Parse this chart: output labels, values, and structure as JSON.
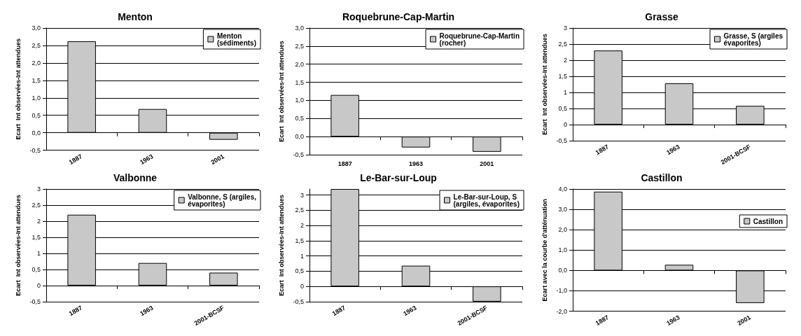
{
  "chart_data": [
    {
      "type": "bar",
      "title": "Menton",
      "ylabel": "Ecart  Int observées-Int attendues",
      "categories": [
        "1887",
        "1963",
        "2001"
      ],
      "series": [
        {
          "name": "Menton\n(sédiments)",
          "color": "#c8c8c8",
          "values": [
            2.62,
            0.68,
            -0.2
          ]
        }
      ],
      "ylim": [
        -0.5,
        3
      ],
      "yticks": [
        {
          "value": -0.5,
          "label": "-0,5"
        },
        {
          "value": 0,
          "label": "0,0"
        },
        {
          "value": 0.5,
          "label": "0,5"
        },
        {
          "value": 1,
          "label": "1,0"
        },
        {
          "value": 1.5,
          "label": "1,5"
        },
        {
          "value": 2,
          "label": "2,0"
        },
        {
          "value": 2.5,
          "label": "2,5"
        },
        {
          "value": 3,
          "label": "3,0"
        }
      ],
      "grid": "y",
      "legend": "top right"
    },
    {
      "type": "bar",
      "title": "Roquebrune-Cap-Martin",
      "ylabel": "Ecart  Int observées-Int attendues",
      "categories": [
        "1887",
        "1963",
        "2001"
      ],
      "series": [
        {
          "name": "Roquebrune-Cap-Martin\n(rocher)",
          "color": "#c8c8c8",
          "values": [
            1.15,
            -0.3,
            -0.42
          ]
        }
      ],
      "ylim": [
        -0.5,
        3
      ],
      "yticks": [
        {
          "value": -0.5,
          "label": "-0,5"
        },
        {
          "value": 0,
          "label": "0,0"
        },
        {
          "value": 0.5,
          "label": "0,5"
        },
        {
          "value": 1,
          "label": "1,0"
        },
        {
          "value": 1.5,
          "label": "1,5"
        },
        {
          "value": 2,
          "label": "2,0"
        },
        {
          "value": 2.5,
          "label": "2,5"
        },
        {
          "value": 3,
          "label": "3,0"
        }
      ],
      "grid": "y",
      "legend": "top right"
    },
    {
      "type": "bar",
      "title": "Grasse",
      "ylabel": "Ecart  Int observées-Int attendues",
      "categories": [
        "1887",
        "1963",
        "2001-BCSF"
      ],
      "series": [
        {
          "name": "Grasse, S (argiles\névaporites)",
          "color": "#c8c8c8",
          "values": [
            2.3,
            1.28,
            0.58
          ]
        }
      ],
      "ylim": [
        -0.5,
        3
      ],
      "yticks": [
        {
          "value": -0.5,
          "label": "-0,5"
        },
        0,
        {
          "value": 0.5,
          "label": "0,5"
        },
        1,
        {
          "value": 1.5,
          "label": "1,5"
        },
        2,
        {
          "value": 2.5,
          "label": "2,5"
        },
        3
      ],
      "grid": "y",
      "legend": "top right"
    },
    {
      "type": "bar",
      "title": "Valbonne",
      "ylabel": "Ecart  Int observées-Int attendues",
      "categories": [
        "1887",
        "1963",
        "2001-BCSF"
      ],
      "series": [
        {
          "name": "Valbonne, S (argiles,\névaporites)",
          "color": "#c8c8c8",
          "values": [
            2.2,
            0.7,
            0.4
          ]
        }
      ],
      "ylim": [
        -0.5,
        3
      ],
      "yticks": [
        {
          "value": -0.5,
          "label": "-0,5"
        },
        0,
        {
          "value": 0.5,
          "label": "0,5"
        },
        1,
        {
          "value": 1.5,
          "label": "1,5"
        },
        2,
        {
          "value": 2.5,
          "label": "2,5"
        },
        3
      ],
      "grid": "y",
      "legend": "top right"
    },
    {
      "type": "bar",
      "title": "Le-Bar-sur-Loup",
      "ylabel": "Ecart  Int observées-Int attendues",
      "categories": [
        "1887",
        "1963",
        "2001-BCSF"
      ],
      "series": [
        {
          "name": "Le-Bar-sur-Loup, S\n(argiles, évaporites)",
          "color": "#c8c8c8",
          "values": [
            3.2,
            0.68,
            -0.5
          ]
        }
      ],
      "ylim": [
        -0.5,
        3.2
      ],
      "yticks": [
        {
          "value": -0.5,
          "label": "-0,5"
        },
        0,
        {
          "value": 0.5,
          "label": "0,5"
        },
        1,
        {
          "value": 1.5,
          "label": "1,5"
        },
        2,
        {
          "value": 2.5,
          "label": "2,5"
        },
        3
      ],
      "grid": "y",
      "legend": "top right"
    },
    {
      "type": "bar",
      "title": "Castillon",
      "ylabel": "Ecart avec la courbe d'atténuation",
      "categories": [
        "1887",
        "1963",
        "2001"
      ],
      "series": [
        {
          "name": "Castillon",
          "color": "#c8c8c8",
          "values": [
            3.87,
            0.28,
            -1.6
          ]
        }
      ],
      "ylim": [
        -2,
        4
      ],
      "yticks": [
        {
          "value": -2,
          "label": "-2,0"
        },
        {
          "value": -1,
          "label": "-1,0"
        },
        {
          "value": 0,
          "label": "0,0"
        },
        {
          "value": 1,
          "label": "1,0"
        },
        {
          "value": 2,
          "label": "2,0"
        },
        {
          "value": 3,
          "label": "3,0"
        },
        {
          "value": 4,
          "label": "4,0"
        }
      ],
      "grid": "y",
      "legend": "right"
    }
  ]
}
